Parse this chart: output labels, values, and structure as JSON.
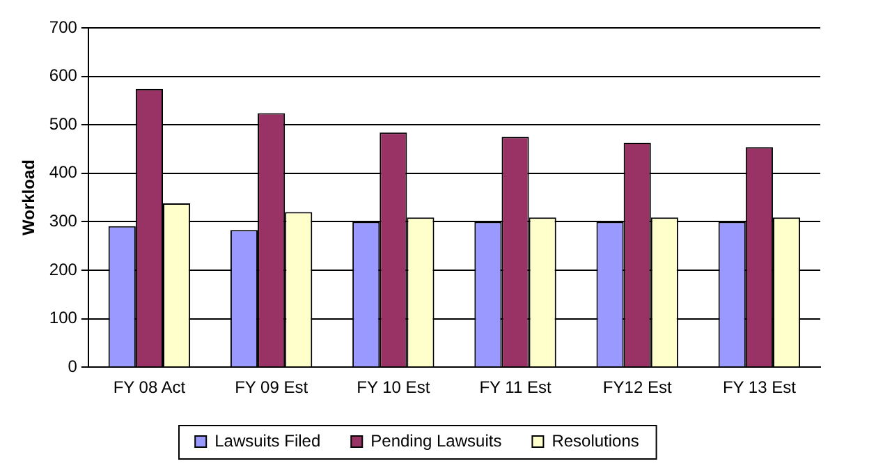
{
  "chart_data": {
    "type": "bar",
    "ylabel": "Workload",
    "categories": [
      "FY 08 Act",
      "FY 09 Est",
      "FY 10 Est",
      "FY 11 Est",
      "FY12 Est",
      "FY 13 Est"
    ],
    "series": [
      {
        "name": "Lawsuits Filed",
        "color": "#9999ff",
        "values": [
          291,
          283,
          300,
          300,
          300,
          300
        ]
      },
      {
        "name": "Pending Lawsuits",
        "color": "#993366",
        "values": [
          574,
          524,
          484,
          475,
          463,
          454
        ]
      },
      {
        "name": "Resolutions",
        "color": "#ffffcc",
        "values": [
          338,
          320,
          309,
          309,
          309,
          309
        ]
      }
    ],
    "ylim": [
      0,
      700
    ],
    "yticks": [
      0,
      100,
      200,
      300,
      400,
      500,
      600,
      700
    ],
    "grid": "y",
    "legend": "bottom"
  }
}
